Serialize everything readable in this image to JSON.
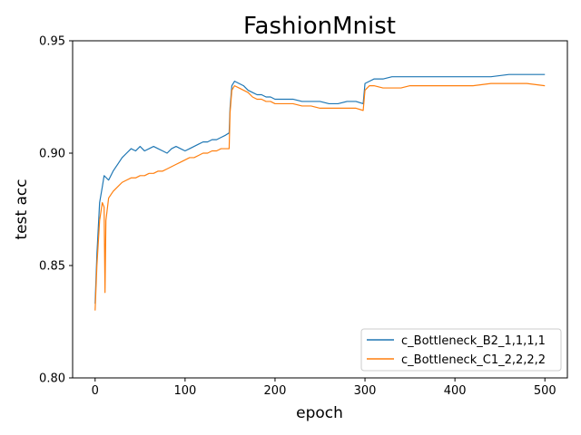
{
  "chart_data": {
    "type": "line",
    "title": "FashionMnist",
    "xlabel": "epoch",
    "ylabel": "test acc",
    "xlim": [
      -25,
      525
    ],
    "ylim": [
      0.8,
      0.95
    ],
    "xticks": [
      0,
      100,
      200,
      300,
      400,
      500
    ],
    "xtick_labels": [
      "0",
      "100",
      "200",
      "300",
      "400",
      "500"
    ],
    "yticks": [
      0.8,
      0.85,
      0.9,
      0.95
    ],
    "ytick_labels": [
      "0.80",
      "0.85",
      "0.90",
      "0.95"
    ],
    "grid": false,
    "legend_position": "lower-right",
    "series": [
      {
        "name": "c_Bottleneck_B2_1,1,1,1",
        "color": "#1f77b4",
        "x": [
          0,
          2,
          5,
          8,
          10,
          15,
          20,
          25,
          30,
          35,
          40,
          45,
          50,
          55,
          60,
          65,
          70,
          75,
          80,
          85,
          90,
          95,
          100,
          105,
          110,
          115,
          120,
          125,
          130,
          135,
          140,
          145,
          149,
          150,
          152,
          155,
          160,
          165,
          170,
          175,
          180,
          185,
          190,
          195,
          200,
          210,
          220,
          230,
          240,
          250,
          260,
          270,
          280,
          290,
          298,
          300,
          305,
          310,
          320,
          330,
          340,
          350,
          360,
          380,
          400,
          420,
          440,
          460,
          480,
          500
        ],
        "y": [
          0.833,
          0.855,
          0.878,
          0.885,
          0.89,
          0.888,
          0.892,
          0.895,
          0.898,
          0.9,
          0.902,
          0.901,
          0.903,
          0.901,
          0.902,
          0.903,
          0.902,
          0.901,
          0.9,
          0.902,
          0.903,
          0.902,
          0.901,
          0.902,
          0.903,
          0.904,
          0.905,
          0.905,
          0.906,
          0.906,
          0.907,
          0.908,
          0.909,
          0.92,
          0.93,
          0.932,
          0.931,
          0.93,
          0.928,
          0.927,
          0.926,
          0.926,
          0.925,
          0.925,
          0.924,
          0.924,
          0.924,
          0.923,
          0.923,
          0.923,
          0.922,
          0.922,
          0.923,
          0.923,
          0.922,
          0.931,
          0.932,
          0.933,
          0.933,
          0.934,
          0.934,
          0.934,
          0.934,
          0.934,
          0.934,
          0.934,
          0.934,
          0.935,
          0.935,
          0.935
        ]
      },
      {
        "name": "c_Bottleneck_C1_2,2,2,2",
        "color": "#ff7f0e",
        "x": [
          0,
          2,
          5,
          8,
          10,
          11,
          12,
          15,
          20,
          25,
          30,
          35,
          40,
          45,
          50,
          55,
          60,
          65,
          70,
          75,
          80,
          85,
          90,
          95,
          100,
          105,
          110,
          115,
          120,
          125,
          130,
          135,
          140,
          145,
          149,
          150,
          152,
          155,
          160,
          165,
          170,
          175,
          180,
          185,
          190,
          195,
          200,
          210,
          220,
          230,
          240,
          250,
          260,
          270,
          280,
          290,
          298,
          300,
          305,
          310,
          320,
          330,
          340,
          350,
          360,
          380,
          400,
          420,
          440,
          460,
          480,
          500
        ],
        "y": [
          0.83,
          0.85,
          0.87,
          0.878,
          0.876,
          0.838,
          0.87,
          0.88,
          0.883,
          0.885,
          0.887,
          0.888,
          0.889,
          0.889,
          0.89,
          0.89,
          0.891,
          0.891,
          0.892,
          0.892,
          0.893,
          0.894,
          0.895,
          0.896,
          0.897,
          0.898,
          0.898,
          0.899,
          0.9,
          0.9,
          0.901,
          0.901,
          0.902,
          0.902,
          0.902,
          0.918,
          0.928,
          0.93,
          0.929,
          0.928,
          0.927,
          0.925,
          0.924,
          0.924,
          0.923,
          0.923,
          0.922,
          0.922,
          0.922,
          0.921,
          0.921,
          0.92,
          0.92,
          0.92,
          0.92,
          0.92,
          0.919,
          0.928,
          0.93,
          0.93,
          0.929,
          0.929,
          0.929,
          0.93,
          0.93,
          0.93,
          0.93,
          0.93,
          0.931,
          0.931,
          0.931,
          0.93
        ]
      }
    ]
  }
}
